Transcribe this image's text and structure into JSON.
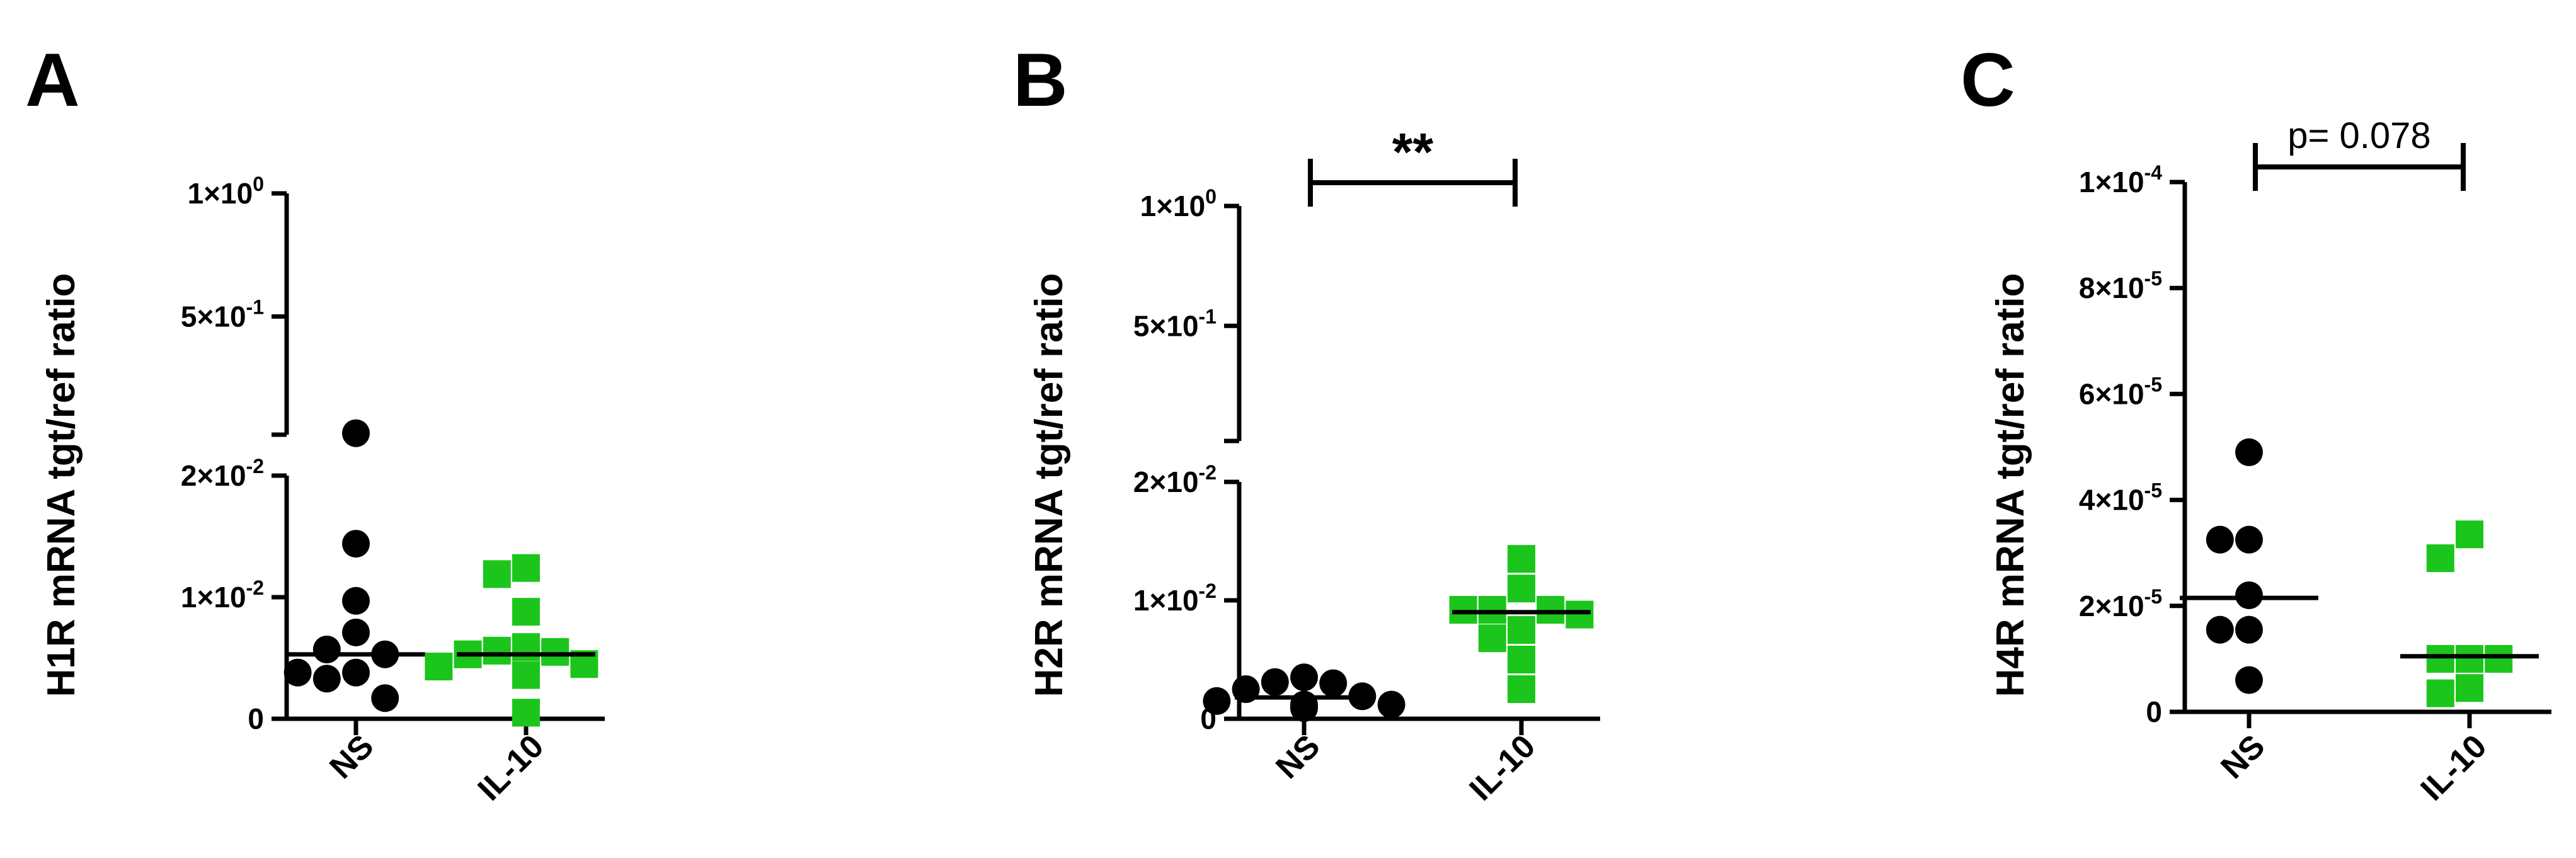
{
  "panels": [
    {
      "letter": "A",
      "chart_data": {
        "type": "scatter",
        "ylabel": "H1R mRNA tgt/ref ratio",
        "categories": [
          "NS",
          "IL-10"
        ],
        "y_scale": "broken",
        "y_segments": [
          {
            "range": [
              0,
              0.02
            ],
            "ticks": [
              0,
              0.01,
              0.02
            ]
          },
          {
            "range": [
              0.02,
              1
            ],
            "ticks": [
              0.5,
              1
            ]
          }
        ],
        "y_tick_labels": [
          "0",
          "1×10⁻²",
          "2×10⁻²",
          "5×10⁻¹",
          "1×10⁰"
        ],
        "series": [
          {
            "name": "NS",
            "color": "#000000",
            "marker": "circle",
            "values": [
              0.0259,
              0.0144,
              0.0097,
              0.0071,
              0.0057,
              0.0053,
              0.0038,
              0.0038,
              0.0033,
              0.0017
            ],
            "median": 0.0053
          },
          {
            "name": "IL-10",
            "color": "#1bc51b",
            "marker": "square",
            "values": [
              0.0124,
              0.0119,
              0.0088,
              0.0059,
              0.0056,
              0.0055,
              0.0053,
              0.0045,
              0.0043,
              0.0036,
              0.0005
            ],
            "median": 0.0053
          }
        ],
        "annotation": null
      }
    },
    {
      "letter": "B",
      "chart_data": {
        "type": "scatter",
        "ylabel": "H2R mRNA tgt/ref ratio",
        "categories": [
          "NS",
          "IL-10"
        ],
        "y_scale": "broken",
        "y_segments": [
          {
            "range": [
              0,
              0.02
            ],
            "ticks": [
              0,
              0.01,
              0.02
            ]
          },
          {
            "range": [
              0.02,
              1
            ],
            "ticks": [
              0.5,
              1
            ]
          }
        ],
        "y_tick_labels": [
          "0",
          "1×10⁻²",
          "2×10⁻²",
          "5×10⁻¹",
          "1×10⁰"
        ],
        "series": [
          {
            "name": "NS",
            "color": "#000000",
            "marker": "circle",
            "values": [
              0.0035,
              0.0031,
              0.003,
              0.0025,
              0.0019,
              0.0015,
              0.0012,
              0.0012,
              0.001,
              0.0009
            ],
            "median": 0.0018
          },
          {
            "name": "IL-10",
            "color": "#1bc51b",
            "marker": "square",
            "values": [
              0.0135,
              0.011,
              0.0092,
              0.0092,
              0.0092,
              0.0088,
              0.0075,
              0.0068,
              0.005,
              0.0025
            ],
            "median": 0.009
          },
          {
            "name": "",
            "color": "#000000",
            "marker": "square",
            "values": [],
            "median": null
          }
        ],
        "annotation": {
          "text": "**",
          "between": [
            "NS",
            "IL-10"
          ]
        }
      }
    },
    {
      "letter": "C",
      "chart_data": {
        "type": "scatter",
        "ylabel": "H4R mRNA tgt/ref ratio",
        "categories": [
          "NS",
          "IL-10"
        ],
        "y_scale": "linear",
        "ylim": [
          0,
          0.0001
        ],
        "y_tick_values": [
          0,
          2e-05,
          4e-05,
          6e-05,
          8e-05,
          0.0001
        ],
        "y_tick_labels": [
          "0",
          "2×10⁻⁵",
          "4×10⁻⁵",
          "6×10⁻⁵",
          "8×10⁻⁵",
          "1×10⁻⁴"
        ],
        "series": [
          {
            "name": "NS",
            "color": "#000000",
            "marker": "circle",
            "values": [
              4.9e-05,
              3.25e-05,
              3.25e-05,
              2.2e-05,
              1.55e-05,
              1.55e-05,
              6e-06
            ],
            "median": 2.15e-05
          },
          {
            "name": "IL-10",
            "color": "#1bc51b",
            "marker": "square",
            "values": [
              3.35e-05,
              2.9e-05,
              1e-05,
              1e-05,
              1e-05,
              4.5e-06,
              3.5e-06
            ],
            "median": 1.05e-05
          }
        ],
        "annotation": {
          "text": "p= 0.078",
          "between": [
            "NS",
            "IL-10"
          ]
        }
      }
    }
  ]
}
